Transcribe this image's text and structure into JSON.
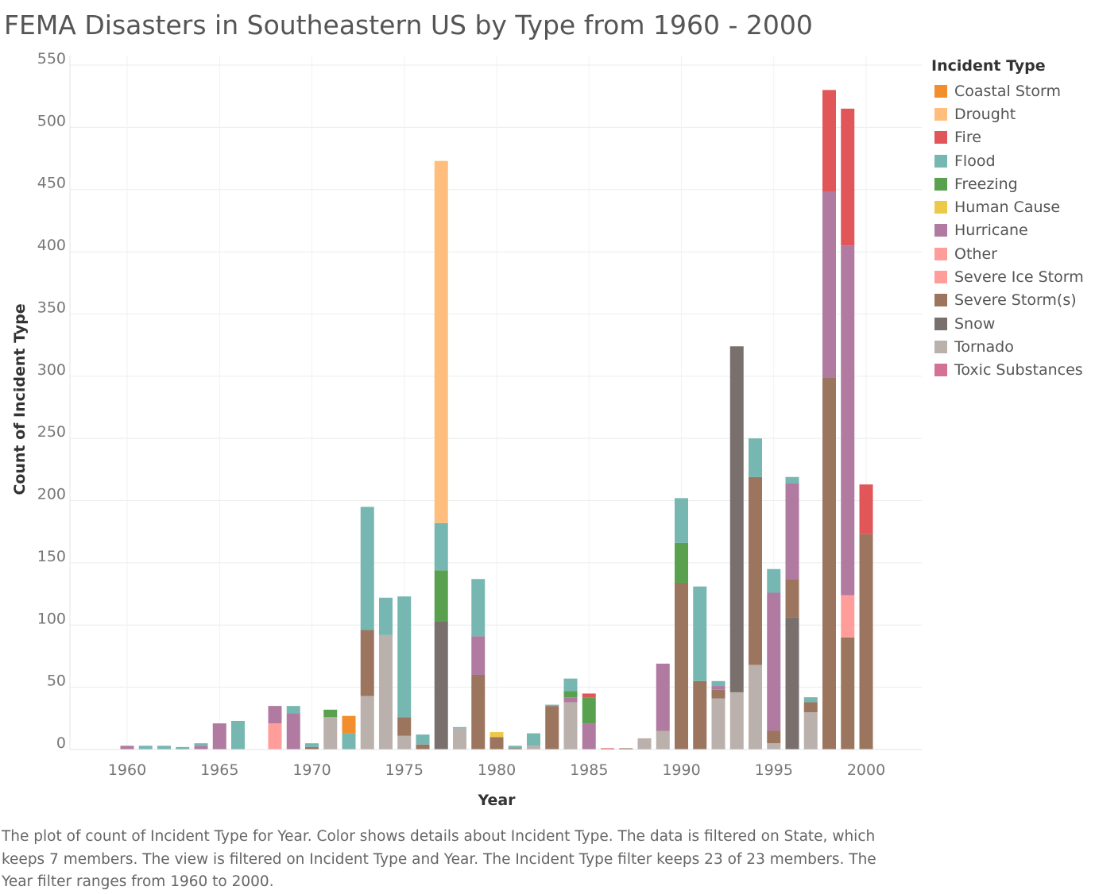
{
  "title": "FEMA Disasters in Southeastern US by Type from 1960 - 2000",
  "caption": "The plot of count of Incident Type for Year.  Color shows details about Incident Type. The data is filtered on State, which keeps 7 members. The view is filtered on Incident Type and Year. The Incident Type filter keeps 23 of 23 members. The Year filter ranges from 1960 to 2000.",
  "chart_data": {
    "type": "bar",
    "stacked": true,
    "title": "FEMA Disasters in Southeastern US by Type from 1960 - 2000",
    "xlabel": "Year",
    "ylabel": "Count of Incident Type",
    "ylim": [
      0,
      550
    ],
    "yticks": [
      0,
      50,
      100,
      150,
      200,
      250,
      300,
      350,
      400,
      450,
      500,
      550
    ],
    "xticks": [
      1960,
      1965,
      1970,
      1975,
      1980,
      1985,
      1990,
      1995,
      2000
    ],
    "grid": true,
    "legend_title": "Incident Type",
    "legend_position": "right",
    "categories": [
      "Coastal Storm",
      "Drought",
      "Fire",
      "Flood",
      "Freezing",
      "Human Cause",
      "Hurricane",
      "Other",
      "Severe Ice Storm",
      "Severe Storm(s)",
      "Snow",
      "Tornado",
      "Toxic Substances"
    ],
    "colors": {
      "Coastal Storm": "#f28e2b",
      "Drought": "#ffbe7d",
      "Fire": "#e15759",
      "Flood": "#76b7b2",
      "Freezing": "#59a14f",
      "Human Cause": "#edc948",
      "Hurricane": "#b07aa1",
      "Other": "#ff9d9a",
      "Severe Ice Storm": "#ff9d9a",
      "Severe Storm(s)": "#9c755f",
      "Snow": "#79706e",
      "Tornado": "#bab0ac",
      "Toxic Substances": "#d37295"
    },
    "stack_order": [
      "Tornado",
      "Snow",
      "Severe Storm(s)",
      "Severe Ice Storm",
      "Other",
      "Hurricane",
      "Human Cause",
      "Freezing",
      "Flood",
      "Drought",
      "Fire",
      "Coastal Storm",
      "Toxic Substances"
    ],
    "years": [
      {
        "year": 1960,
        "segments": {
          "Hurricane": 3
        }
      },
      {
        "year": 1961,
        "segments": {
          "Flood": 3
        }
      },
      {
        "year": 1962,
        "segments": {
          "Flood": 3
        }
      },
      {
        "year": 1963,
        "segments": {
          "Flood": 2
        }
      },
      {
        "year": 1964,
        "segments": {
          "Hurricane": 3,
          "Flood": 2
        }
      },
      {
        "year": 1965,
        "segments": {
          "Hurricane": 21
        }
      },
      {
        "year": 1966,
        "segments": {
          "Flood": 23
        }
      },
      {
        "year": 1968,
        "segments": {
          "Severe Ice Storm": 21,
          "Hurricane": 14
        }
      },
      {
        "year": 1969,
        "segments": {
          "Hurricane": 29,
          "Flood": 6
        }
      },
      {
        "year": 1970,
        "segments": {
          "Severe Storm(s)": 2,
          "Flood": 3
        }
      },
      {
        "year": 1971,
        "segments": {
          "Tornado": 26,
          "Freezing": 6
        }
      },
      {
        "year": 1972,
        "segments": {
          "Flood": 13,
          "Coastal Storm": 14
        }
      },
      {
        "year": 1973,
        "segments": {
          "Tornado": 43,
          "Severe Storm(s)": 53,
          "Flood": 99
        }
      },
      {
        "year": 1974,
        "segments": {
          "Tornado": 92,
          "Flood": 30
        }
      },
      {
        "year": 1975,
        "segments": {
          "Tornado": 11,
          "Severe Storm(s)": 15,
          "Flood": 97
        }
      },
      {
        "year": 1976,
        "segments": {
          "Severe Storm(s)": 4,
          "Flood": 8
        }
      },
      {
        "year": 1977,
        "segments": {
          "Snow": 103,
          "Freezing": 41,
          "Flood": 38,
          "Drought": 291
        }
      },
      {
        "year": 1978,
        "segments": {
          "Tornado": 17,
          "Flood": 1
        }
      },
      {
        "year": 1979,
        "segments": {
          "Severe Storm(s)": 60,
          "Hurricane": 31,
          "Flood": 46
        }
      },
      {
        "year": 1980,
        "segments": {
          "Severe Storm(s)": 10,
          "Human Cause": 4
        }
      },
      {
        "year": 1981,
        "segments": {
          "Severe Storm(s)": 1,
          "Flood": 2
        }
      },
      {
        "year": 1982,
        "segments": {
          "Tornado": 3,
          "Flood": 10
        }
      },
      {
        "year": 1983,
        "segments": {
          "Severe Storm(s)": 35,
          "Flood": 1
        }
      },
      {
        "year": 1984,
        "segments": {
          "Tornado": 38,
          "Hurricane": 4,
          "Freezing": 5,
          "Flood": 10
        }
      },
      {
        "year": 1985,
        "segments": {
          "Hurricane": 21,
          "Freezing": 21,
          "Fire": 3
        }
      },
      {
        "year": 1986,
        "segments": {
          "Fire": 1
        }
      },
      {
        "year": 1987,
        "segments": {
          "Severe Storm(s)": 1
        }
      },
      {
        "year": 1988,
        "segments": {
          "Tornado": 9
        }
      },
      {
        "year": 1989,
        "segments": {
          "Tornado": 15,
          "Hurricane": 54
        }
      },
      {
        "year": 1990,
        "segments": {
          "Severe Storm(s)": 134,
          "Freezing": 32,
          "Flood": 36
        }
      },
      {
        "year": 1991,
        "segments": {
          "Severe Storm(s)": 55,
          "Flood": 76
        }
      },
      {
        "year": 1992,
        "segments": {
          "Tornado": 41,
          "Severe Storm(s)": 7,
          "Hurricane": 3,
          "Flood": 4
        }
      },
      {
        "year": 1993,
        "segments": {
          "Tornado": 46,
          "Snow": 278
        }
      },
      {
        "year": 1994,
        "segments": {
          "Tornado": 68,
          "Severe Storm(s)": 151,
          "Flood": 31
        }
      },
      {
        "year": 1995,
        "segments": {
          "Tornado": 5,
          "Severe Storm(s)": 10,
          "Hurricane": 111,
          "Flood": 19
        }
      },
      {
        "year": 1996,
        "segments": {
          "Snow": 106,
          "Severe Storm(s)": 31,
          "Hurricane": 77,
          "Flood": 5
        }
      },
      {
        "year": 1997,
        "segments": {
          "Tornado": 30,
          "Severe Storm(s)": 8,
          "Flood": 4
        }
      },
      {
        "year": 1998,
        "segments": {
          "Severe Storm(s)": 299,
          "Hurricane": 149,
          "Fire": 82
        }
      },
      {
        "year": 1999,
        "segments": {
          "Severe Storm(s)": 90,
          "Other": 34,
          "Hurricane": 281,
          "Fire": 110
        }
      },
      {
        "year": 2000,
        "segments": {
          "Severe Storm(s)": 173,
          "Fire": 40
        }
      }
    ]
  }
}
